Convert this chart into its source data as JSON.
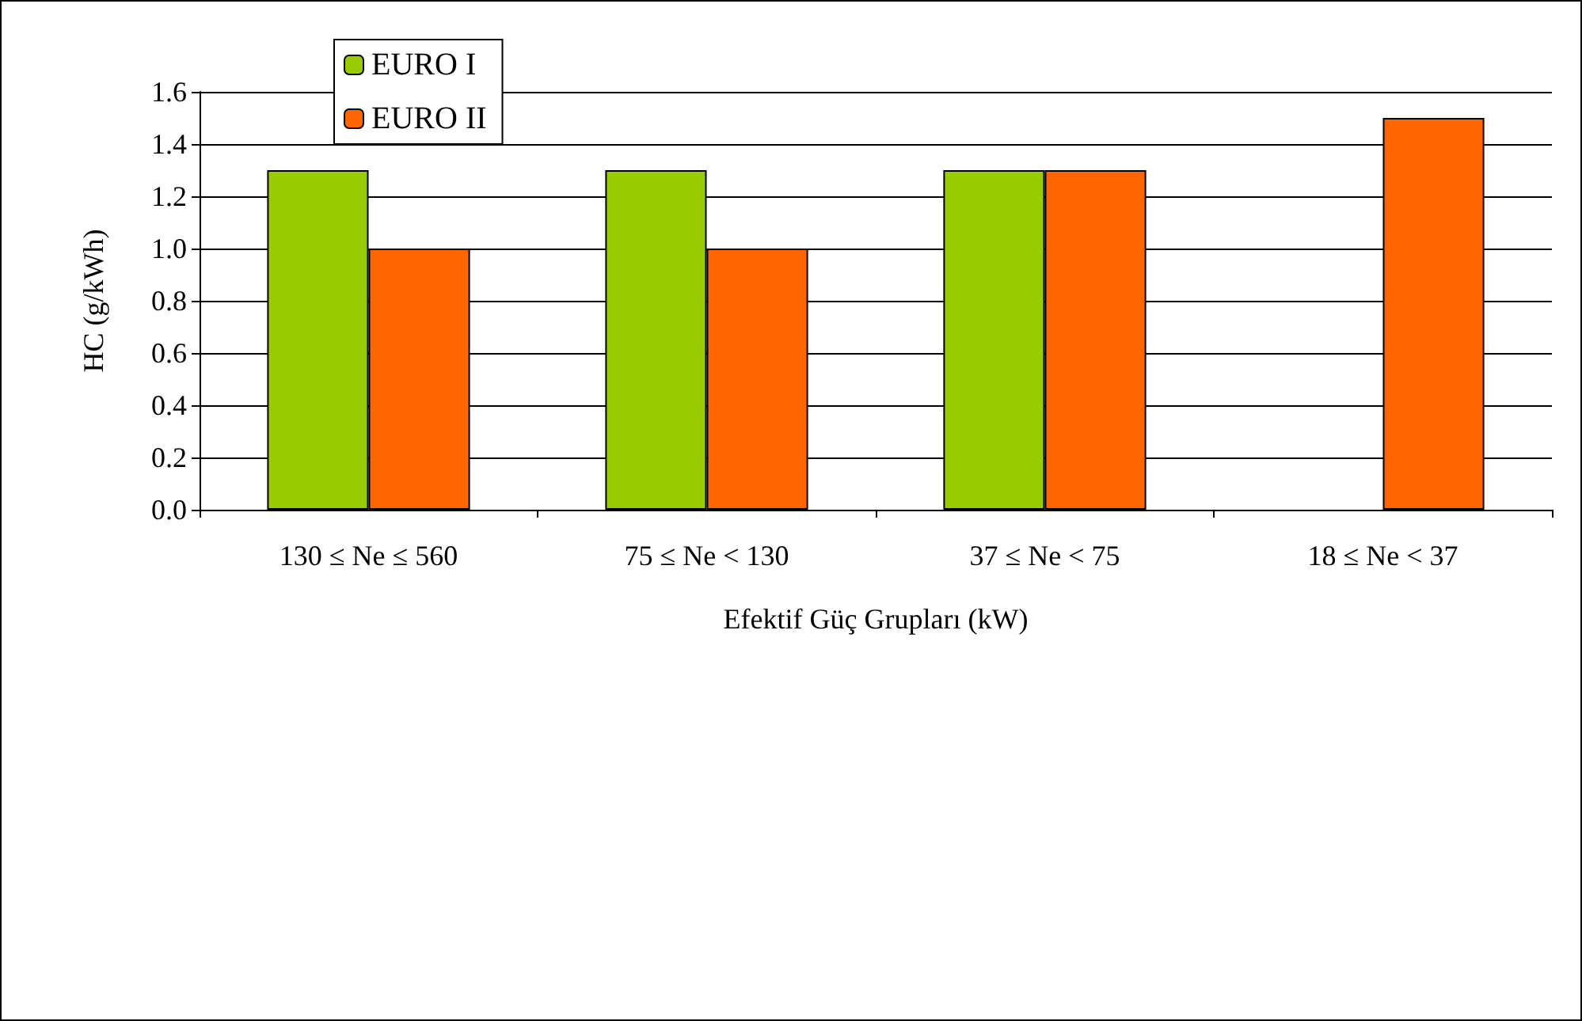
{
  "chart_data": {
    "type": "bar",
    "xlabel": "Efektif Güç Grupları (kW)",
    "ylabel": "HC (g/kWh)",
    "categories": [
      "130 ≤ Ne ≤ 560",
      "75 ≤ Ne < 130",
      "37 ≤ Ne < 75",
      "18 ≤ Ne < 37"
    ],
    "series": [
      {
        "name": "EURO I",
        "color": "#99cc00",
        "values": [
          1.3,
          1.3,
          1.3,
          null
        ]
      },
      {
        "name": "EURO II",
        "color": "#ff6600",
        "values": [
          1.0,
          1.0,
          1.3,
          1.5
        ]
      }
    ],
    "ylim": [
      0,
      1.6
    ],
    "yticks": [
      {
        "value": 0,
        "label": "0.0"
      },
      {
        "value": 0.2,
        "label": "0.2"
      },
      {
        "value": 0.4,
        "label": "0.4"
      },
      {
        "value": 0.6,
        "label": "0.6"
      },
      {
        "value": 0.8,
        "label": "0.8"
      },
      {
        "value": 1,
        "label": "1.0"
      },
      {
        "value": 1.2,
        "label": "1.2"
      },
      {
        "value": 1.4,
        "label": "1.4"
      },
      {
        "value": 1.6,
        "label": "1.6"
      }
    ],
    "grid": "y",
    "legend": "top left"
  }
}
